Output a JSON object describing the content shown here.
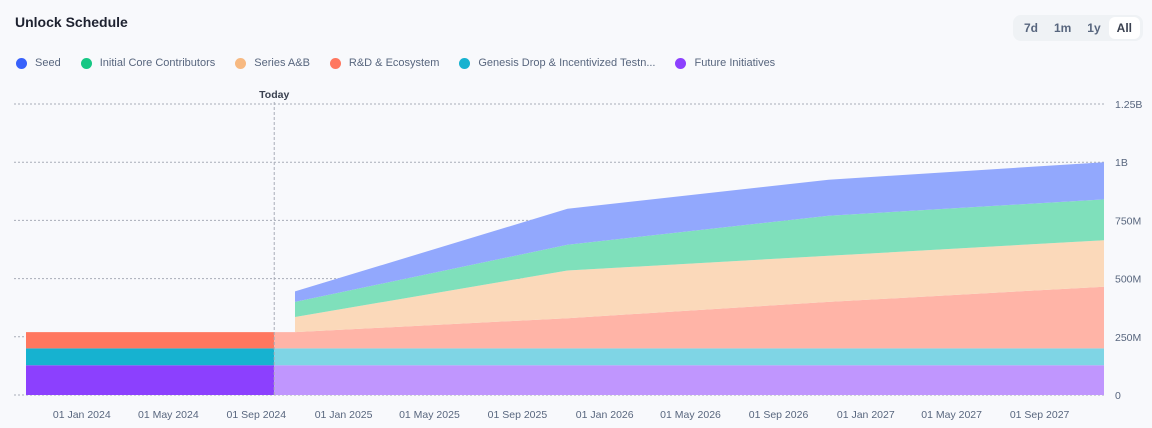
{
  "header": {
    "title": "Unlock Schedule",
    "ranges": [
      {
        "label": "7d",
        "active": false
      },
      {
        "label": "1m",
        "active": false
      },
      {
        "label": "1y",
        "active": false
      },
      {
        "label": "All",
        "active": true
      }
    ]
  },
  "chart_data": {
    "type": "area",
    "stacked": true,
    "title": "Unlock Schedule",
    "today_label": "Today",
    "today_date": "2024-09-26",
    "x_start": "2023-10-15",
    "x_end": "2027-11-30",
    "ylim": [
      0,
      1250000000
    ],
    "y_ticks": [
      {
        "value": 0,
        "label": "0"
      },
      {
        "value": 250000000,
        "label": "250M"
      },
      {
        "value": 500000000,
        "label": "500M"
      },
      {
        "value": 750000000,
        "label": "750M"
      },
      {
        "value": 1000000000,
        "label": "1B"
      },
      {
        "value": 1250000000,
        "label": "1.25B"
      }
    ],
    "x_ticks": [
      {
        "date": "2024-01-01",
        "label": "01 Jan 2024"
      },
      {
        "date": "2024-05-01",
        "label": "01 May 2024"
      },
      {
        "date": "2024-09-01",
        "label": "01 Sep 2024"
      },
      {
        "date": "2025-01-01",
        "label": "01 Jan 2025"
      },
      {
        "date": "2025-05-01",
        "label": "01 May 2025"
      },
      {
        "date": "2025-09-01",
        "label": "01 Sep 2025"
      },
      {
        "date": "2026-01-01",
        "label": "01 Jan 2026"
      },
      {
        "date": "2026-05-01",
        "label": "01 May 2026"
      },
      {
        "date": "2026-09-01",
        "label": "01 Sep 2026"
      },
      {
        "date": "2027-01-01",
        "label": "01 Jan 2027"
      },
      {
        "date": "2027-05-01",
        "label": "01 May 2027"
      },
      {
        "date": "2027-09-01",
        "label": "01 Sep 2027"
      }
    ],
    "grid": true,
    "legend_position": "top-left",
    "x": [
      "2023-10-15",
      "2024-10-25",
      "2025-11-10",
      "2026-11-10",
      "2027-11-30"
    ],
    "series": [
      {
        "name": "Future Initiatives",
        "color": "#8c40fe",
        "values": [
          128000000,
          128000000,
          128000000,
          128000000,
          128000000
        ]
      },
      {
        "name": "Genesis Drop & Incentivized Testn...",
        "color": "#16b2d0",
        "values": [
          72000000,
          72000000,
          72000000,
          72000000,
          72000000
        ]
      },
      {
        "name": "R&D & Ecosystem",
        "color": "#ff775f",
        "values": [
          70000000,
          70000000,
          130000000,
          200000000,
          265000000
        ]
      },
      {
        "name": "Series A&B",
        "color": "#f7b981",
        "values": [
          0,
          65000000,
          205000000,
          198000000,
          200000000
        ]
      },
      {
        "name": "Initial Core Contributors",
        "color": "#16c784",
        "values": [
          0,
          65000000,
          110000000,
          172000000,
          175000000
        ]
      },
      {
        "name": "Seed",
        "color": "#3861fb",
        "values": [
          0,
          45000000,
          155000000,
          155000000,
          160000000
        ]
      }
    ]
  },
  "legend": [
    {
      "label": "Seed",
      "color": "#3861fb"
    },
    {
      "label": "Initial Core Contributors",
      "color": "#16c784"
    },
    {
      "label": "Series A&B",
      "color": "#f7b981"
    },
    {
      "label": "R&D & Ecosystem",
      "color": "#ff775f"
    },
    {
      "label": "Genesis Drop & Incentivized Testn...",
      "color": "#16b2d0"
    },
    {
      "label": "Future Initiatives",
      "color": "#8c40fe"
    }
  ]
}
